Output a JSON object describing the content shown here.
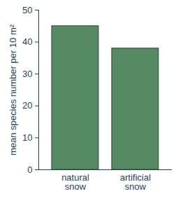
{
  "chart_data": {
    "type": "bar",
    "categories": [
      "natural snow",
      "artificial snow"
    ],
    "values": [
      45,
      38
    ],
    "color": "#568a62",
    "ylabel": "mean species number per 10 m²",
    "ylim": [
      0,
      50
    ],
    "yticks": [
      0,
      10,
      20,
      30,
      40,
      50
    ],
    "grid": false
  }
}
